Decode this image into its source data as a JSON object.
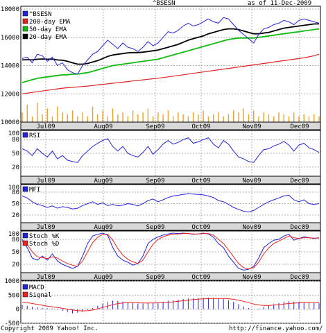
{
  "header": {
    "title": "^BSESN",
    "date": "as of 11-Dec-2009"
  },
  "footer": {
    "copyright": "Copyright 2009 Yahoo! Inc.",
    "url": "http://finance.yahoo.com/"
  },
  "colors": {
    "price": "#2222dd",
    "ema200": "#dd2222",
    "ema50": "#11bb11",
    "ema20": "#000000",
    "volume": "#f0a020",
    "rsi": "#2222dd",
    "stochK": "#2222dd",
    "stochD": "#ee2222",
    "macd": "#2222dd",
    "signal": "#ee2222",
    "panelBg": "#ffffff",
    "grid": "#999999",
    "axisStrip": "#d8d8d8"
  },
  "months": [
    "Jul09",
    "Aug09",
    "Sep09",
    "Oct09",
    "Nov09",
    "Dec09"
  ],
  "chart_data": [
    {
      "type": "line",
      "name": "price",
      "yticks": [
        10000,
        12000,
        14000,
        16000,
        18000
      ],
      "ylim": [
        10000,
        18200
      ],
      "legend": [
        "^BSESN",
        "200-day EMA",
        "50-day EMA",
        "20-day EMA"
      ],
      "series": [
        {
          "name": "^BSESN",
          "values": [
            14500,
            14600,
            14200,
            14800,
            14700,
            14300,
            14600,
            14000,
            14200,
            13700,
            13500,
            13400,
            14000,
            14400,
            14800,
            15000,
            15400,
            15800,
            15500,
            15200,
            15600,
            15300,
            15200,
            15000,
            15300,
            15700,
            15400,
            15600,
            16000,
            16400,
            16300,
            16500,
            16800,
            17000,
            16800,
            16900,
            17100,
            17300,
            17100,
            17000,
            17400,
            17300,
            16900,
            16500,
            16200,
            15900,
            15600,
            16200,
            16600,
            16700,
            16900,
            17000,
            17200,
            17100,
            16900,
            17200,
            17300,
            17200,
            17100,
            17000
          ]
        },
        {
          "name": "20-day EMA",
          "values": [
            14400,
            14420,
            14400,
            14450,
            14470,
            14450,
            14460,
            14400,
            14380,
            14300,
            14200,
            14100,
            14100,
            14150,
            14250,
            14350,
            14500,
            14650,
            14750,
            14800,
            14850,
            14900,
            14920,
            14920,
            14950,
            15000,
            15050,
            15100,
            15200,
            15300,
            15400,
            15500,
            15650,
            15800,
            15900,
            16000,
            16100,
            16250,
            16350,
            16450,
            16550,
            16600,
            16600,
            16550,
            16450,
            16350,
            16250,
            16250,
            16300,
            16350,
            16450,
            16550,
            16650,
            16700,
            16750,
            16800,
            16850,
            16900,
            16950,
            16950
          ]
        },
        {
          "name": "50-day EMA",
          "values": [
            12800,
            12900,
            13000,
            13100,
            13150,
            13200,
            13250,
            13300,
            13350,
            13350,
            13400,
            13400,
            13450,
            13500,
            13600,
            13700,
            13800,
            13900,
            14000,
            14050,
            14100,
            14150,
            14200,
            14250,
            14300,
            14350,
            14400,
            14450,
            14550,
            14650,
            14750,
            14850,
            14950,
            15050,
            15150,
            15250,
            15350,
            15450,
            15550,
            15650,
            15750,
            15850,
            15900,
            15950,
            15950,
            15950,
            15950,
            16000,
            16050,
            16100,
            16150,
            16200,
            16250,
            16300,
            16350,
            16400,
            16450,
            16500,
            16550,
            16600
          ]
        },
        {
          "name": "200-day EMA",
          "values": [
            12000,
            12050,
            12100,
            12150,
            12200,
            12250,
            12300,
            12350,
            12400,
            12430,
            12460,
            12490,
            12520,
            12550,
            12590,
            12630,
            12670,
            12710,
            12750,
            12790,
            12830,
            12870,
            12910,
            12950,
            12990,
            13030,
            13070,
            13110,
            13150,
            13200,
            13250,
            13300,
            13350,
            13400,
            13450,
            13500,
            13550,
            13600,
            13650,
            13700,
            13750,
            13800,
            13850,
            13900,
            13950,
            14000,
            14050,
            14100,
            14150,
            14200,
            14250,
            14300,
            14350,
            14400,
            14450,
            14500,
            14550,
            14620,
            14700,
            14800
          ]
        },
        {
          "name": "volume",
          "values": [
            0.5,
            0.9,
            0.3,
            1.0,
            0.4,
            0.7,
            0.3,
            0.8,
            0.5,
            0.4,
            0.6,
            0.3,
            0.5,
            0.3,
            0.8,
            0.4,
            0.6,
            0.3,
            0.7,
            0.4,
            0.5,
            0.3,
            0.6,
            0.4,
            0.5,
            0.7,
            0.3,
            0.5,
            0.4,
            0.6,
            0.3,
            0.5,
            0.4,
            0.3,
            0.5,
            0.4,
            0.6,
            0.3,
            0.4,
            0.5,
            0.3,
            0.4,
            0.6,
            0.5,
            0.7,
            0.4,
            0.6,
            0.3,
            0.5,
            0.4,
            0.3,
            0.5,
            0.4,
            0.3,
            0.5,
            0.3,
            0.4,
            0.3,
            0.4,
            0.3
          ]
        }
      ]
    },
    {
      "type": "line",
      "name": "rsi",
      "ylim": [
        0,
        100
      ],
      "yticks": [
        20,
        50,
        80
      ],
      "legend": [
        "RSI"
      ],
      "series": [
        {
          "name": "RSI",
          "values": [
            60,
            55,
            45,
            60,
            50,
            42,
            55,
            38,
            45,
            35,
            32,
            30,
            45,
            55,
            65,
            72,
            78,
            82,
            65,
            55,
            65,
            50,
            45,
            42,
            52,
            65,
            48,
            58,
            70,
            78,
            70,
            74,
            80,
            84,
            72,
            75,
            80,
            84,
            70,
            62,
            78,
            70,
            55,
            42,
            38,
            32,
            30,
            45,
            58,
            60,
            66,
            70,
            76,
            68,
            55,
            68,
            72,
            62,
            58,
            52
          ]
        }
      ]
    },
    {
      "type": "line",
      "name": "mfi",
      "ylim": [
        0,
        100
      ],
      "yticks": [
        20,
        50,
        80
      ],
      "legend": [
        "MFI"
      ],
      "series": [
        {
          "name": "MFI",
          "values": [
            70,
            65,
            55,
            48,
            45,
            40,
            44,
            38,
            42,
            40,
            36,
            38,
            45,
            50,
            55,
            48,
            52,
            45,
            48,
            44,
            46,
            50,
            48,
            44,
            50,
            58,
            62,
            55,
            60,
            66,
            70,
            72,
            74,
            76,
            75,
            74,
            73,
            70,
            66,
            58,
            55,
            48,
            40,
            35,
            30,
            28,
            32,
            40,
            48,
            55,
            60,
            65,
            70,
            72,
            60,
            55,
            60,
            50,
            48,
            50
          ]
        }
      ]
    },
    {
      "type": "line",
      "name": "stochastic",
      "ylim": [
        0,
        100
      ],
      "yticks": [
        20,
        50,
        80
      ],
      "legend": [
        "Stoch %K",
        "Stoch %D"
      ],
      "series": [
        {
          "name": "Stoch %K",
          "values": [
            80,
            60,
            35,
            30,
            40,
            30,
            45,
            28,
            20,
            15,
            10,
            15,
            40,
            70,
            88,
            92,
            95,
            90,
            60,
            40,
            30,
            25,
            18,
            22,
            40,
            70,
            80,
            86,
            90,
            93,
            95,
            94,
            95,
            94,
            92,
            93,
            95,
            93,
            85,
            70,
            60,
            40,
            25,
            10,
            6,
            8,
            15,
            35,
            60,
            70,
            78,
            80,
            88,
            92,
            78,
            82,
            86,
            84,
            82,
            84
          ]
        },
        {
          "name": "Stoch %D",
          "values": [
            75,
            68,
            50,
            38,
            36,
            34,
            38,
            35,
            28,
            22,
            18,
            15,
            28,
            50,
            72,
            85,
            92,
            92,
            78,
            58,
            42,
            32,
            26,
            22,
            30,
            50,
            68,
            80,
            86,
            90,
            92,
            93,
            94,
            94,
            93,
            93,
            94,
            94,
            90,
            80,
            70,
            55,
            38,
            22,
            12,
            9,
            12,
            25,
            45,
            60,
            70,
            76,
            82,
            88,
            84,
            82,
            84,
            84,
            83,
            83
          ]
        }
      ]
    },
    {
      "type": "bar",
      "name": "macd",
      "ylim": [
        -500,
        1000
      ],
      "yticks": [
        -500,
        0,
        500,
        1000
      ],
      "legend": [
        "MACD",
        "Signal"
      ],
      "series": [
        {
          "name": "MACD",
          "values": [
            150,
            120,
            80,
            60,
            50,
            30,
            20,
            -20,
            -60,
            -100,
            -150,
            -130,
            -90,
            -30,
            40,
            120,
            200,
            260,
            300,
            290,
            270,
            250,
            220,
            200,
            200,
            220,
            230,
            240,
            260,
            300,
            320,
            340,
            360,
            380,
            390,
            390,
            400,
            410,
            400,
            380,
            360,
            320,
            260,
            180,
            100,
            40,
            0,
            20,
            80,
            140,
            180,
            220,
            260,
            280,
            270,
            260,
            250,
            240,
            230,
            220
          ]
        },
        {
          "name": "Signal",
          "values": [
            250,
            230,
            200,
            170,
            140,
            110,
            85,
            60,
            30,
            0,
            -30,
            -50,
            -60,
            -55,
            -30,
            10,
            60,
            110,
            160,
            200,
            220,
            230,
            230,
            225,
            220,
            220,
            222,
            225,
            230,
            245,
            260,
            280,
            300,
            320,
            340,
            355,
            365,
            375,
            380,
            380,
            378,
            370,
            350,
            320,
            280,
            230,
            180,
            150,
            135,
            135,
            145,
            160,
            180,
            200,
            215,
            225,
            230,
            232,
            232,
            230
          ]
        }
      ]
    }
  ]
}
